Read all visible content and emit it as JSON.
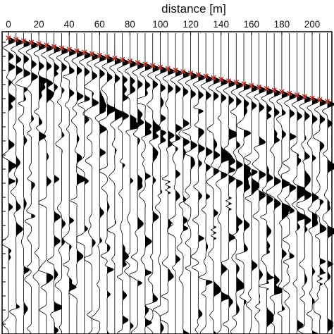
{
  "chart_data": {
    "type": "line",
    "subtype": "seismic-shot-gather",
    "xlabel": "distance [m]",
    "x_ticks": [
      0,
      20,
      40,
      60,
      80,
      100,
      120,
      140,
      160,
      180,
      200
    ],
    "x_unit": "m",
    "xlim": [
      0,
      210
    ],
    "trace_spacing_m": 5,
    "trace_count": 43,
    "y_axis": "time, increasing downward (tick labels not visible)",
    "fill": "positive lobes filled black (wiggle-variable-area)",
    "colors": {
      "trace": "#000000",
      "first_break_pick": "#d62a1f",
      "background": "#ffffff"
    },
    "first_break_picks": {
      "marker": "x",
      "description": "red crosses along first arrivals, sloping down to the right"
    },
    "grid": false,
    "legend": "none"
  }
}
